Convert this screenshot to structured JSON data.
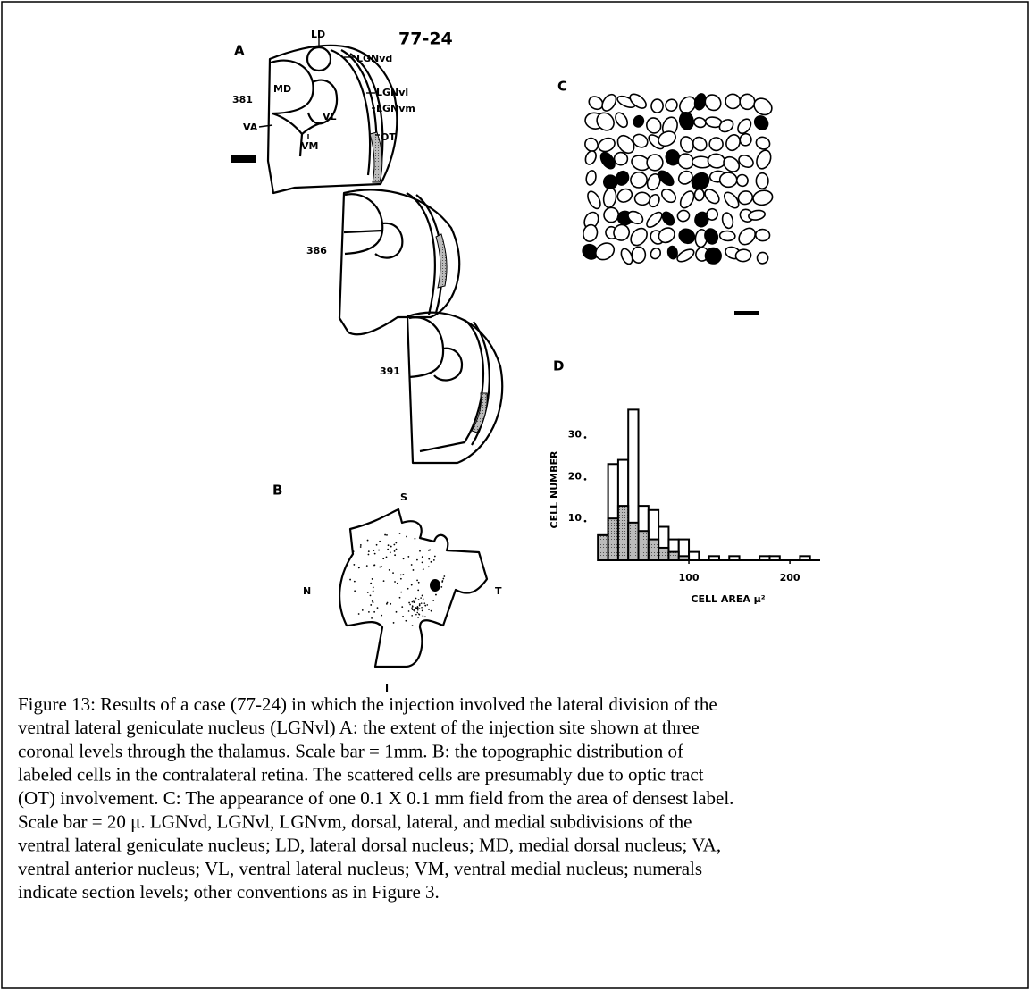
{
  "figure": {
    "panel_a": {
      "label": "A",
      "case": "77-24",
      "structures": [
        "LD",
        "LGNvd",
        "LGNvl",
        "LGNvm",
        "OT",
        "MD",
        "VL",
        "VA",
        "VM"
      ],
      "levels": [
        "381",
        "386",
        "391"
      ]
    },
    "panel_b": {
      "label": "B",
      "directions": [
        "S",
        "N",
        "T",
        "I"
      ]
    },
    "panel_c": {
      "label": "C"
    },
    "panel_d": {
      "label": "D",
      "type": "histogram",
      "ylabel": "CELL NUMBER",
      "xlabel": "CELL AREA μ²",
      "bins": [
        10,
        20,
        30,
        40,
        50,
        60,
        70,
        80,
        90,
        100,
        110,
        120,
        130,
        140,
        150,
        160,
        170,
        180,
        190,
        200,
        210,
        220
      ],
      "total_counts": [
        6,
        23,
        24,
        36,
        13,
        12,
        8,
        5,
        5,
        2,
        0,
        1,
        0,
        1,
        0,
        0,
        1,
        1,
        0,
        0,
        1
      ],
      "labeled_counts": [
        6,
        10,
        13,
        9,
        7,
        5,
        3,
        2,
        1,
        0,
        0,
        0,
        0,
        0,
        0,
        0,
        0,
        0,
        0,
        0,
        0
      ],
      "xlim": [
        0,
        230
      ],
      "ylim": [
        0,
        38
      ],
      "xticks": [
        100,
        200
      ],
      "yticks": [
        10,
        20,
        30
      ]
    }
  },
  "caption": [
    "Figure 13: Results of a case (77-24) in which the injection involved the lateral division of the",
    "ventral lateral geniculate nucleus (LGNvl) A: the extent of the injection site shown at three",
    "coronal levels through the thalamus. Scale bar = 1mm. B: the topographic distribution of",
    "labeled cells in the contralateral retina. The scattered cells are presumably due to optic tract",
    "(OT) involvement. C: The appearance of one 0.1 X 0.1 mm field from the area of densest label.",
    "Scale bar = 20 μ. LGNvd, LGNvl, LGNvm, dorsal, lateral, and medial subdivisions of the",
    "ventral lateral geniculate nucleus; LD, lateral dorsal nucleus; MD, medial dorsal nucleus; VA,",
    "ventral anterior nucleus; VL, ventral lateral nucleus; VM, ventral medial nucleus; numerals",
    "indicate section levels; other conventions as in Figure 3."
  ]
}
